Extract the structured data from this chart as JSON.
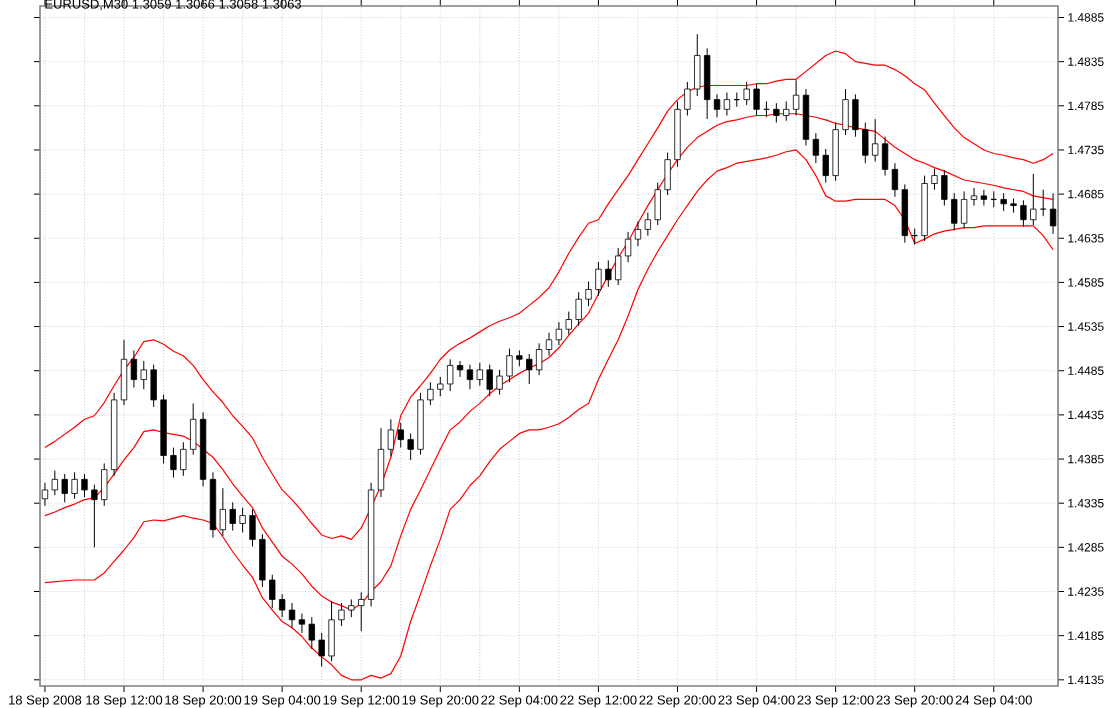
{
  "chart_data": {
    "type": "candlestick",
    "title": "EURUSD,M30  1.3059 1.3066 1.3058 1.3063",
    "categories": [
      "18 Sep 2008",
      null,
      null,
      null,
      null,
      null,
      null,
      null,
      "18 Sep 12:00",
      null,
      null,
      null,
      null,
      null,
      null,
      null,
      "18 Sep 20:00",
      null,
      null,
      null,
      null,
      null,
      null,
      null,
      "19 Sep 04:00",
      null,
      null,
      null,
      null,
      null,
      null,
      null,
      "19 Sep 12:00",
      null,
      null,
      null,
      null,
      null,
      null,
      null,
      "19 Sep 20:00",
      null,
      null,
      null,
      null,
      null,
      null,
      null,
      "22 Sep 04:00",
      null,
      null,
      null,
      null,
      null,
      null,
      null,
      "22 Sep 12:00",
      null,
      null,
      null,
      null,
      null,
      null,
      null,
      "22 Sep 20:00",
      null,
      null,
      null,
      null,
      null,
      null,
      null,
      "23 Sep 04:00",
      null,
      null,
      null,
      null,
      null,
      null,
      null,
      "23 Sep 12:00",
      null,
      null,
      null,
      null,
      null,
      null,
      null,
      "23 Sep 20:00",
      null,
      null,
      null,
      null,
      null,
      null,
      null,
      "24 Sep 04:00",
      null,
      null,
      null,
      null,
      null,
      null
    ],
    "ohlc": [
      [
        1.434,
        1.4358,
        1.4332,
        1.435
      ],
      [
        1.435,
        1.4372,
        1.4344,
        1.4362
      ],
      [
        1.4362,
        1.4368,
        1.4336,
        1.4346
      ],
      [
        1.4346,
        1.437,
        1.434,
        1.4362
      ],
      [
        1.4362,
        1.4368,
        1.4342,
        1.435
      ],
      [
        1.435,
        1.4356,
        1.4285,
        1.4339
      ],
      [
        1.4339,
        1.438,
        1.4332,
        1.4373
      ],
      [
        1.4373,
        1.446,
        1.4366,
        1.4452
      ],
      [
        1.4452,
        1.452,
        1.4446,
        1.4498
      ],
      [
        1.4498,
        1.4508,
        1.4466,
        1.4475
      ],
      [
        1.4475,
        1.4496,
        1.4464,
        1.4486
      ],
      [
        1.4486,
        1.4492,
        1.4444,
        1.4452
      ],
      [
        1.4452,
        1.4458,
        1.438,
        1.4389
      ],
      [
        1.4389,
        1.4398,
        1.4364,
        1.4373
      ],
      [
        1.4373,
        1.4404,
        1.4366,
        1.4396
      ],
      [
        1.4396,
        1.4448,
        1.439,
        1.443
      ],
      [
        1.443,
        1.4438,
        1.4354,
        1.4362
      ],
      [
        1.4362,
        1.437,
        1.4296,
        1.4305
      ],
      [
        1.4305,
        1.4352,
        1.4298,
        1.4328
      ],
      [
        1.4328,
        1.4336,
        1.4304,
        1.4312
      ],
      [
        1.4312,
        1.433,
        1.4302,
        1.4321
      ],
      [
        1.4321,
        1.4328,
        1.4286,
        1.4294
      ],
      [
        1.4294,
        1.43,
        1.424,
        1.4248
      ],
      [
        1.4248,
        1.4254,
        1.4216,
        1.4226
      ],
      [
        1.4226,
        1.4232,
        1.4206,
        1.4214
      ],
      [
        1.4214,
        1.4222,
        1.4194,
        1.4203
      ],
      [
        1.4203,
        1.421,
        1.4188,
        1.4198
      ],
      [
        1.4198,
        1.4206,
        1.417,
        1.418
      ],
      [
        1.418,
        1.4188,
        1.415,
        1.4162
      ],
      [
        1.4162,
        1.4224,
        1.4156,
        1.4203
      ],
      [
        1.4203,
        1.4222,
        1.4196,
        1.4214
      ],
      [
        1.4214,
        1.4226,
        1.4206,
        1.4219
      ],
      [
        1.4219,
        1.4234,
        1.419,
        1.4226
      ],
      [
        1.4226,
        1.4358,
        1.4218,
        1.435
      ],
      [
        1.435,
        1.442,
        1.4342,
        1.4396
      ],
      [
        1.4396,
        1.443,
        1.4388,
        1.4418
      ],
      [
        1.4418,
        1.4426,
        1.4398,
        1.4407
      ],
      [
        1.4407,
        1.4414,
        1.4384,
        1.4396
      ],
      [
        1.4396,
        1.446,
        1.439,
        1.4452
      ],
      [
        1.4452,
        1.4472,
        1.4446,
        1.4464
      ],
      [
        1.4464,
        1.4478,
        1.4456,
        1.447
      ],
      [
        1.447,
        1.4498,
        1.4462,
        1.4491
      ],
      [
        1.4491,
        1.4496,
        1.4478,
        1.4486
      ],
      [
        1.4486,
        1.4492,
        1.4464,
        1.4475
      ],
      [
        1.4475,
        1.4494,
        1.4468,
        1.4486
      ],
      [
        1.4486,
        1.4492,
        1.4456,
        1.4464
      ],
      [
        1.4464,
        1.4486,
        1.4458,
        1.4479
      ],
      [
        1.4479,
        1.451,
        1.4472,
        1.4502
      ],
      [
        1.4502,
        1.4508,
        1.449,
        1.4498
      ],
      [
        1.4498,
        1.4504,
        1.447,
        1.4486
      ],
      [
        1.4486,
        1.4516,
        1.448,
        1.4509
      ],
      [
        1.4509,
        1.4528,
        1.4502,
        1.452
      ],
      [
        1.452,
        1.454,
        1.4514,
        1.4532
      ],
      [
        1.4532,
        1.4552,
        1.4526,
        1.4543
      ],
      [
        1.4543,
        1.4574,
        1.4536,
        1.4566
      ],
      [
        1.4566,
        1.4586,
        1.4558,
        1.4577
      ],
      [
        1.4577,
        1.4608,
        1.457,
        1.46
      ],
      [
        1.46,
        1.461,
        1.458,
        1.4588
      ],
      [
        1.4588,
        1.4624,
        1.4582,
        1.4615
      ],
      [
        1.4615,
        1.4642,
        1.4608,
        1.4634
      ],
      [
        1.4634,
        1.4654,
        1.4626,
        1.4645
      ],
      [
        1.4645,
        1.4664,
        1.4638,
        1.4656
      ],
      [
        1.4656,
        1.4698,
        1.465,
        1.469
      ],
      [
        1.469,
        1.4732,
        1.4684,
        1.4724
      ],
      [
        1.4724,
        1.479,
        1.4716,
        1.4781
      ],
      [
        1.4781,
        1.4812,
        1.4774,
        1.4804
      ],
      [
        1.4804,
        1.4866,
        1.4796,
        1.4842
      ],
      [
        1.4842,
        1.485,
        1.477,
        1.4792
      ],
      [
        1.4792,
        1.4798,
        1.4772,
        1.4781
      ],
      [
        1.4781,
        1.48,
        1.4774,
        1.4792
      ],
      [
        1.4792,
        1.48,
        1.4784,
        1.4792
      ],
      [
        1.4792,
        1.4812,
        1.4786,
        1.4804
      ],
      [
        1.4804,
        1.481,
        1.4774,
        1.4781
      ],
      [
        1.4781,
        1.479,
        1.4772,
        1.4781
      ],
      [
        1.4781,
        1.4788,
        1.4766,
        1.4774
      ],
      [
        1.4774,
        1.479,
        1.4768,
        1.4781
      ],
      [
        1.4781,
        1.4814,
        1.4774,
        1.4797
      ],
      [
        1.4797,
        1.4804,
        1.474,
        1.4747
      ],
      [
        1.4747,
        1.4754,
        1.472,
        1.4729
      ],
      [
        1.4729,
        1.4736,
        1.4698,
        1.4706
      ],
      [
        1.4706,
        1.4766,
        1.47,
        1.4758
      ],
      [
        1.4758,
        1.4804,
        1.4752,
        1.4792
      ],
      [
        1.4792,
        1.4798,
        1.475,
        1.4758
      ],
      [
        1.4758,
        1.4766,
        1.472,
        1.4729
      ],
      [
        1.4729,
        1.477,
        1.4722,
        1.4742
      ],
      [
        1.4742,
        1.475,
        1.4706,
        1.4713
      ],
      [
        1.4713,
        1.472,
        1.4682,
        1.469
      ],
      [
        1.469,
        1.4696,
        1.463,
        1.4638
      ],
      [
        1.4638,
        1.4646,
        1.4628,
        1.4638
      ],
      [
        1.4638,
        1.4706,
        1.4632,
        1.4697
      ],
      [
        1.4697,
        1.4714,
        1.469,
        1.4706
      ],
      [
        1.4706,
        1.4712,
        1.4672,
        1.4679
      ],
      [
        1.4679,
        1.4686,
        1.4644,
        1.4652
      ],
      [
        1.4652,
        1.4688,
        1.4646,
        1.4679
      ],
      [
        1.4679,
        1.4692,
        1.4672,
        1.4683
      ],
      [
        1.4683,
        1.469,
        1.4672,
        1.4679
      ],
      [
        1.4679,
        1.4688,
        1.467,
        1.4679
      ],
      [
        1.4679,
        1.4686,
        1.4666,
        1.4674
      ],
      [
        1.4674,
        1.468,
        1.4664,
        1.4672
      ],
      [
        1.4672,
        1.4678,
        1.4648,
        1.4656
      ],
      [
        1.4656,
        1.4708,
        1.465,
        1.4668
      ],
      [
        1.4668,
        1.469,
        1.466,
        1.4668
      ],
      [
        1.4668,
        1.4686,
        1.464,
        1.4649
      ]
    ],
    "series": [
      {
        "type": "line",
        "color": "#ff0000",
        "values": [
          1.4398,
          1.4405,
          1.4413,
          1.4421,
          1.443,
          1.4434,
          1.4449,
          1.4468,
          1.4486,
          1.45,
          1.4518,
          1.452,
          1.4515,
          1.4507,
          1.4502,
          1.4491,
          1.4475,
          1.4461,
          1.4449,
          1.4434,
          1.4422,
          1.4409,
          1.4387,
          1.4368,
          1.435,
          1.4339,
          1.4326,
          1.4312,
          1.4299,
          1.4295,
          1.4298,
          1.4294,
          1.4307,
          1.433,
          1.4355,
          1.4387,
          1.4434,
          1.4455,
          1.4468,
          1.4482,
          1.4498,
          1.4509,
          1.4516,
          1.4522,
          1.4529,
          1.4536,
          1.4541,
          1.4545,
          1.455,
          1.4559,
          1.4568,
          1.4579,
          1.4597,
          1.4618,
          1.4636,
          1.4652,
          1.4656,
          1.4674,
          1.469,
          1.4706,
          1.4724,
          1.4742,
          1.476,
          1.4779,
          1.4792,
          1.4801,
          1.4806,
          1.4808,
          1.4808,
          1.4808,
          1.4808,
          1.4808,
          1.481,
          1.481,
          1.4813,
          1.4815,
          1.4815,
          1.4824,
          1.4833,
          1.4842,
          1.4847,
          1.4844,
          1.4835,
          1.4833,
          1.4831,
          1.4831,
          1.4826,
          1.4819,
          1.481,
          1.4803,
          1.4788,
          1.4774,
          1.476,
          1.4749,
          1.4742,
          1.4735,
          1.4731,
          1.4729,
          1.4726,
          1.4724,
          1.472,
          1.4724,
          1.4731
        ]
      },
      {
        "type": "line",
        "color": "#ff0000",
        "values": [
          1.4321,
          1.4325,
          1.433,
          1.4334,
          1.4339,
          1.4341,
          1.4353,
          1.4368,
          1.4384,
          1.4398,
          1.4416,
          1.4418,
          1.4415,
          1.4413,
          1.4411,
          1.4405,
          1.4396,
          1.4387,
          1.4373,
          1.4357,
          1.4343,
          1.433,
          1.4307,
          1.4291,
          1.4275,
          1.4266,
          1.4255,
          1.4241,
          1.423,
          1.4223,
          1.4219,
          1.4214,
          1.4221,
          1.4235,
          1.4246,
          1.4264,
          1.4298,
          1.4328,
          1.435,
          1.4373,
          1.4396,
          1.4418,
          1.4427,
          1.4439,
          1.4448,
          1.4459,
          1.4468,
          1.4475,
          1.4482,
          1.4488,
          1.4493,
          1.45,
          1.4511,
          1.4525,
          1.4538,
          1.455,
          1.4572,
          1.4593,
          1.4613,
          1.4631,
          1.4652,
          1.4672,
          1.469,
          1.4708,
          1.4724,
          1.4738,
          1.4749,
          1.4756,
          1.4763,
          1.4767,
          1.4769,
          1.4772,
          1.4774,
          1.4774,
          1.4776,
          1.4776,
          1.4776,
          1.4774,
          1.4772,
          1.4769,
          1.4765,
          1.4763,
          1.476,
          1.4758,
          1.4756,
          1.4747,
          1.4738,
          1.4731,
          1.4724,
          1.472,
          1.4715,
          1.4711,
          1.4706,
          1.4701,
          1.4699,
          1.4697,
          1.4695,
          1.4692,
          1.469,
          1.4688,
          1.4683,
          1.4681,
          1.4679
        ]
      },
      {
        "type": "line",
        "color": "#ff0000",
        "values": [
          1.4245,
          1.4246,
          1.4247,
          1.4248,
          1.4248,
          1.4248,
          1.4256,
          1.4269,
          1.4282,
          1.4296,
          1.4314,
          1.4316,
          1.4315,
          1.4318,
          1.4321,
          1.4318,
          1.4316,
          1.4312,
          1.4297,
          1.428,
          1.4265,
          1.4251,
          1.4228,
          1.4214,
          1.4201,
          1.4194,
          1.4184,
          1.4171,
          1.4161,
          1.4152,
          1.414,
          1.4135,
          1.4135,
          1.414,
          1.4137,
          1.4142,
          1.4162,
          1.4201,
          1.4232,
          1.4264,
          1.4294,
          1.4328,
          1.4339,
          1.4355,
          1.4366,
          1.4382,
          1.4396,
          1.4405,
          1.4414,
          1.4418,
          1.4418,
          1.4421,
          1.4425,
          1.4432,
          1.4441,
          1.4448,
          1.4475,
          1.4498,
          1.452,
          1.4547,
          1.4577,
          1.46,
          1.462,
          1.4638,
          1.4656,
          1.4672,
          1.4688,
          1.4701,
          1.4711,
          1.4715,
          1.472,
          1.4722,
          1.4724,
          1.4726,
          1.4729,
          1.4733,
          1.4735,
          1.4724,
          1.4706,
          1.4683,
          1.4677,
          1.4677,
          1.4679,
          1.4679,
          1.4679,
          1.4679,
          1.4672,
          1.4656,
          1.4629,
          1.4634,
          1.464,
          1.4643,
          1.4645,
          1.4647,
          1.4647,
          1.4649,
          1.4649,
          1.4649,
          1.4649,
          1.4649,
          1.4649,
          1.4638,
          1.4622
        ]
      }
    ],
    "ylim": [
      1.4128,
      1.4898
    ],
    "yticks": [
      1.4135,
      1.4185,
      1.4235,
      1.4285,
      1.4335,
      1.4385,
      1.4435,
      1.4485,
      1.4535,
      1.4585,
      1.4635,
      1.4685,
      1.4735,
      1.4785,
      1.4835,
      1.4885
    ],
    "grid": true
  }
}
